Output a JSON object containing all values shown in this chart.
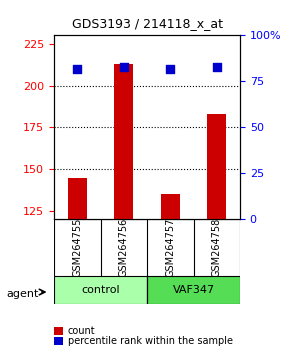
{
  "title": "GDS3193 / 214118_x_at",
  "samples": [
    "GSM264755",
    "GSM264756",
    "GSM264757",
    "GSM264758"
  ],
  "counts": [
    145,
    213,
    135,
    183
  ],
  "percentile_ranks": [
    82,
    83,
    82,
    83
  ],
  "ylim_left": [
    120,
    230
  ],
  "ylim_right": [
    0,
    100
  ],
  "yticks_left": [
    125,
    150,
    175,
    200,
    225
  ],
  "yticks_right": [
    0,
    25,
    50,
    75,
    100
  ],
  "ytick_labels_right": [
    "0",
    "25",
    "50",
    "75",
    "100%"
  ],
  "bar_color": "#cc0000",
  "dot_color": "#0000cc",
  "gridline_y": [
    150,
    175,
    200
  ],
  "groups": [
    {
      "label": "control",
      "samples": [
        0,
        1
      ],
      "color": "#aaffaa"
    },
    {
      "label": "VAF347",
      "samples": [
        2,
        3
      ],
      "color": "#55dd55"
    }
  ],
  "agent_label": "agent",
  "legend_count_label": "count",
  "legend_pct_label": "percentile rank within the sample",
  "bar_width": 0.4,
  "dot_size": 40,
  "background_color": "#ffffff",
  "plot_bg": "#ffffff",
  "sample_box_color": "#cccccc",
  "group_box_border": "#000000"
}
